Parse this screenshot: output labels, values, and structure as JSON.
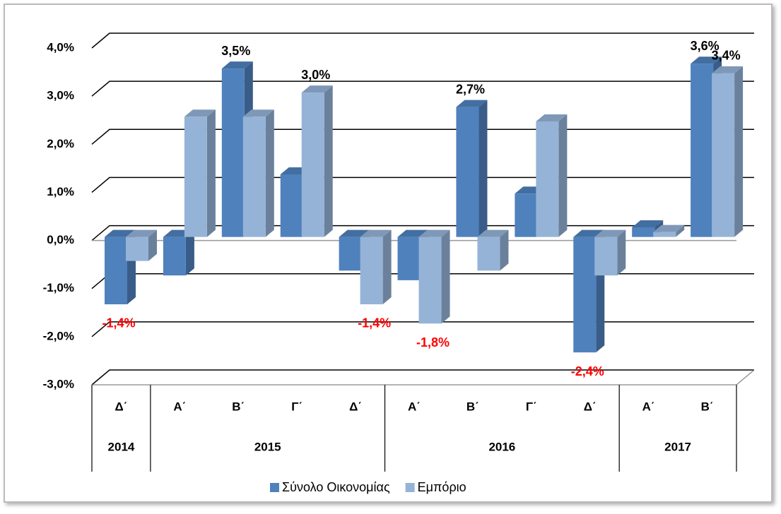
{
  "chart_data": {
    "type": "bar3d",
    "groups": [
      {
        "label": "2014",
        "categories": [
          "Δ΄"
        ]
      },
      {
        "label": "2015",
        "categories": [
          "Α΄",
          "Β΄",
          "Γ΄",
          "Δ΄"
        ]
      },
      {
        "label": "2016",
        "categories": [
          "Α΄",
          "Β΄",
          "Γ΄",
          "Δ΄"
        ]
      },
      {
        "label": "2017",
        "categories": [
          "Α΄",
          "Β΄"
        ]
      }
    ],
    "series": [
      {
        "name": "Σύνολο Οικονομίας",
        "color": "#4f81bd",
        "values": [
          -1.4,
          -0.8,
          3.5,
          1.3,
          -0.7,
          -0.9,
          2.7,
          0.9,
          -2.4,
          0.2,
          3.6
        ],
        "value_labels": [
          "-1,4%",
          null,
          "3,5%",
          null,
          null,
          null,
          "2,7%",
          null,
          "-2,4%",
          null,
          "3,6%"
        ]
      },
      {
        "name": "Εμπόριο",
        "color": "#95b3d7",
        "values": [
          -0.5,
          2.5,
          2.5,
          3.0,
          -1.4,
          -1.8,
          -0.7,
          2.4,
          -0.8,
          0.1,
          3.4
        ],
        "value_labels": [
          null,
          null,
          null,
          "3,0%",
          "-1,4%",
          "-1,8%",
          null,
          null,
          null,
          null,
          "3,4%"
        ]
      }
    ],
    "ylim": [
      -3,
      4
    ],
    "yticks": [
      {
        "value": -3,
        "label": "-3,0%"
      },
      {
        "value": -2,
        "label": "-2,0%"
      },
      {
        "value": -1,
        "label": "-1,0%"
      },
      {
        "value": 0,
        "label": "0,0%"
      },
      {
        "value": 1,
        "label": "1,0%"
      },
      {
        "value": 2,
        "label": "2,0%"
      },
      {
        "value": 3,
        "label": "3,0%"
      },
      {
        "value": 4,
        "label": "4,0%"
      }
    ],
    "grid": true,
    "legend": "bottom",
    "negative_label_color": "#ff0000"
  }
}
